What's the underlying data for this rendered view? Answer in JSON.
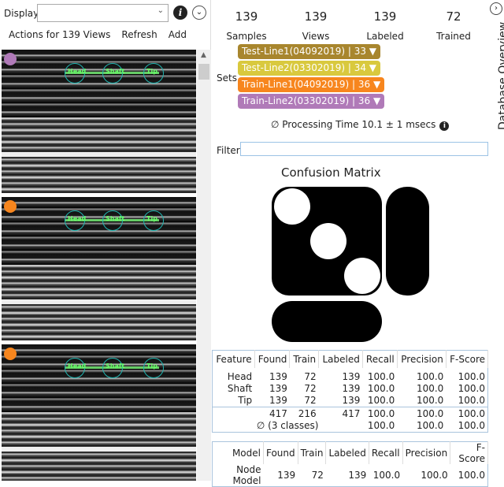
{
  "left": {
    "display_label": "Display",
    "display_value": "",
    "actions": [
      "Actions for 139 Views",
      "Refresh",
      "Add"
    ],
    "thumbnails": [
      {
        "dot_color": "#b07ab8",
        "labels": [
          "Head",
          "Shaft",
          "Tip"
        ]
      },
      {
        "dot_color": "#f7861e",
        "labels": [
          "Head",
          "Shaft",
          "Tip"
        ]
      },
      {
        "dot_color": "#f7861e",
        "labels": [
          "Head",
          "Shaft",
          "Tip"
        ]
      }
    ]
  },
  "stats": [
    {
      "value": "139",
      "label": "Samples"
    },
    {
      "value": "139",
      "label": "Views"
    },
    {
      "value": "139",
      "label": "Labeled"
    },
    {
      "value": "72",
      "label": "Trained"
    }
  ],
  "sets": {
    "label": "Sets",
    "items": [
      {
        "text": "Test-Line1(04092019) | 33 ▼",
        "color": "#a8862e"
      },
      {
        "text": "Test-Line2(03302019) | 34 ▼",
        "color": "#d9c93e"
      },
      {
        "text": "Train-Line1(04092019) | 36 ▼",
        "color": "#f7861e"
      },
      {
        "text": "Train-Line2(03302019) | 36 ▼",
        "color": "#b07ab8"
      }
    ]
  },
  "processing": "∅  Processing Time 10.1 ± 1 msecs",
  "filter": {
    "label": "Filter",
    "value": ""
  },
  "confusion_title": "Confusion Matrix",
  "features_table": {
    "headers": [
      "Feature",
      "Found",
      "Train",
      "Labeled",
      "Recall",
      "Precision",
      "F-Score"
    ],
    "rows": [
      [
        "Head",
        "139",
        "72",
        "139",
        "100.0",
        "100.0",
        "100.0"
      ],
      [
        "Shaft",
        "139",
        "72",
        "139",
        "100.0",
        "100.0",
        "100.0"
      ],
      [
        "Tip",
        "139",
        "72",
        "139",
        "100.0",
        "100.0",
        "100.0"
      ]
    ],
    "total": [
      "",
      "417",
      "216",
      "417",
      "100.0",
      "100.0",
      "100.0"
    ],
    "avg": {
      "label": "∅ (3 classes)",
      "values": [
        "100.0",
        "100.0",
        "100.0"
      ]
    }
  },
  "model_table": {
    "headers": [
      "Model",
      "Found",
      "Train",
      "Labeled",
      "Recall",
      "Precision",
      "F-Score"
    ],
    "rows": [
      [
        "Node Model",
        "139",
        "72",
        "139",
        "100.0",
        "100.0",
        "100.0"
      ]
    ]
  },
  "side_tab": "Database Overview"
}
